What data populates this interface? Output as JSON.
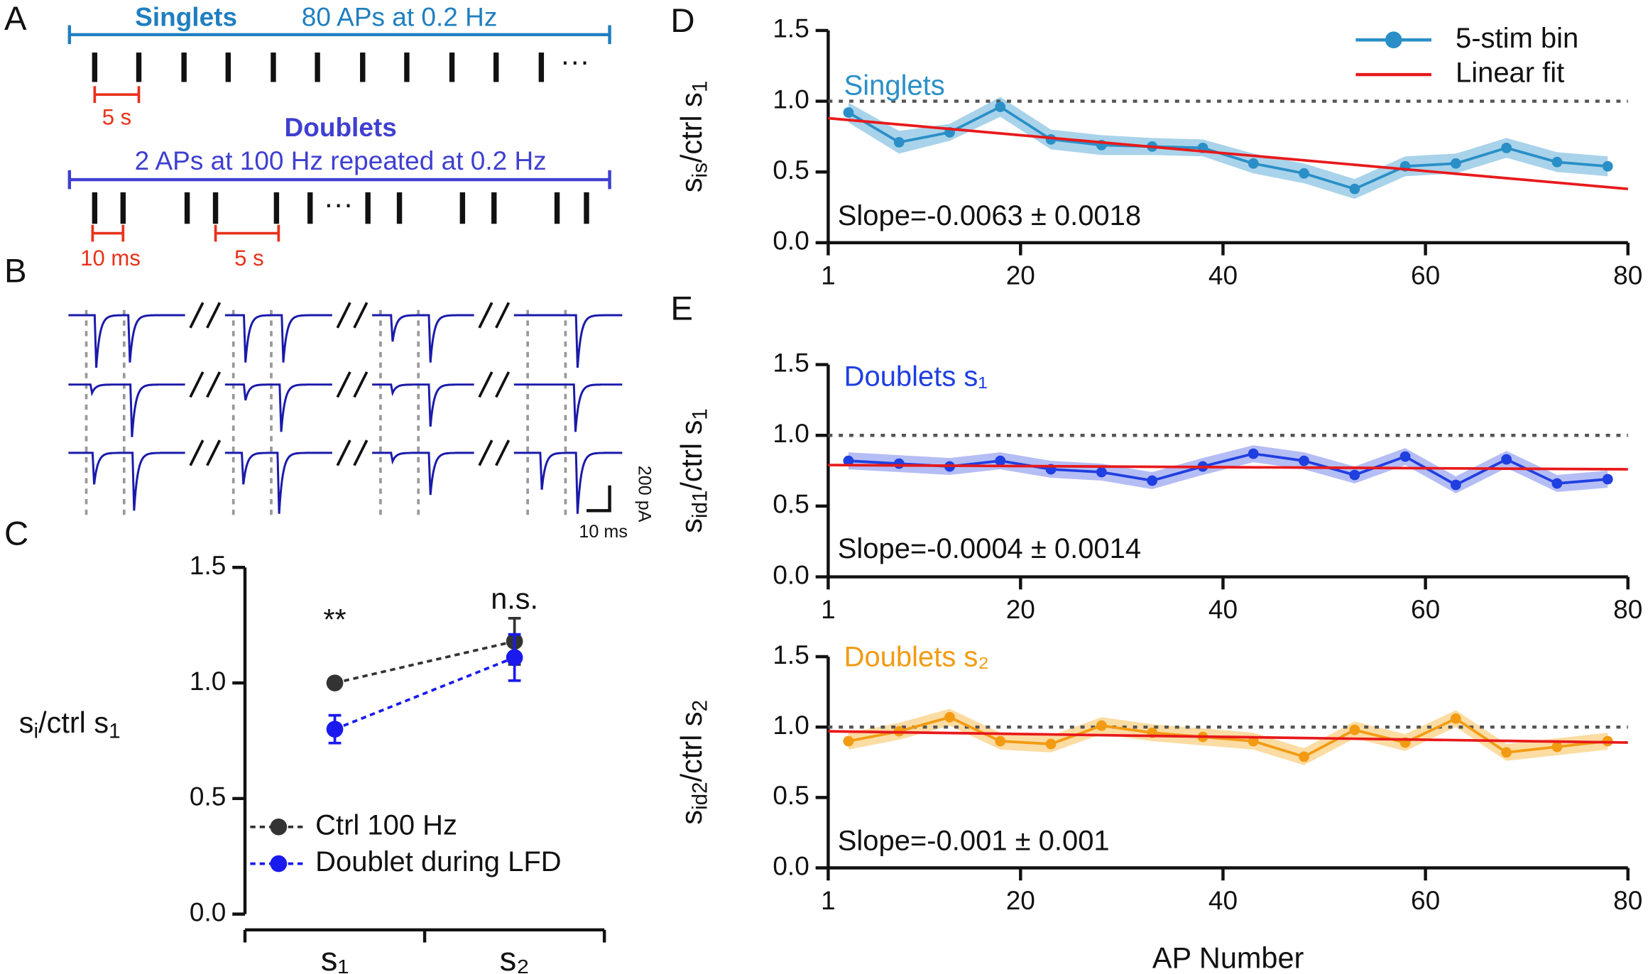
{
  "panel_labels": [
    "A",
    "B",
    "C",
    "D",
    "E"
  ],
  "panel_a": {
    "singlets_title": "Singlets",
    "singlets_text": "80 APs at 0.2 Hz",
    "singlets_scale": "5 s",
    "doublets_title": "Doublets",
    "doublets_text": "2 APs at 100 Hz repeated at 0.2 Hz",
    "doublets_scale_1": "10 ms",
    "doublets_scale_2": "5 s",
    "ellipsis": "···"
  },
  "panel_b": {
    "scale_y": "200 pA",
    "scale_x": "10 ms"
  },
  "chart_data": [
    {
      "type": "line",
      "ylabel": [
        "s",
        "i",
        "/ctrl s",
        "1"
      ],
      "categories": [
        "s₁",
        "s₂"
      ],
      "series": [
        {
          "name": "Ctrl 100 Hz",
          "color": "#333333",
          "values": [
            1.0,
            1.18
          ],
          "errors": [
            null,
            0.1
          ]
        },
        {
          "name": "Doublet during LFD",
          "color": "#1a1aee",
          "values": [
            0.8,
            1.11
          ],
          "errors": [
            0.06,
            0.1
          ]
        }
      ],
      "annotations": [
        "**",
        "n.s."
      ],
      "ylim": [
        0,
        1.5
      ],
      "yticks": [
        {
          "value": 0,
          "label": "0.0"
        },
        0.5,
        {
          "value": 1,
          "label": "1.0"
        },
        1.5
      ],
      "legend": true
    },
    {
      "type": "line",
      "ylabel": [
        "s",
        "is",
        "/ctrl s",
        "1"
      ],
      "label": "Singlets",
      "slope_text": "Slope=-0.0063 ± 0.0018",
      "x": [
        3,
        8,
        13,
        18,
        23,
        28,
        33,
        38,
        43,
        48,
        53,
        58,
        63,
        68,
        73,
        78
      ],
      "series": [
        {
          "name": "5-stim bin",
          "color": "#2a8fc7",
          "band_color": "#a9d3ea",
          "markers": true,
          "values": [
            0.92,
            0.71,
            0.78,
            0.96,
            0.73,
            0.69,
            0.68,
            0.67,
            0.56,
            0.49,
            0.38,
            0.54,
            0.56,
            0.67,
            0.57,
            0.54
          ],
          "lower": [
            0.85,
            0.63,
            0.72,
            0.89,
            0.66,
            0.62,
            0.62,
            0.61,
            0.49,
            0.42,
            0.31,
            0.47,
            0.49,
            0.6,
            0.5,
            0.47
          ],
          "upper": [
            0.99,
            0.79,
            0.84,
            1.03,
            0.8,
            0.76,
            0.74,
            0.73,
            0.63,
            0.56,
            0.45,
            0.61,
            0.63,
            0.74,
            0.64,
            0.61
          ]
        },
        {
          "name": "Linear fit",
          "color": "#e8191b",
          "x": [
            1,
            80
          ],
          "values": [
            0.88,
            0.38
          ]
        }
      ],
      "reference_line": 1,
      "xlim": [
        1,
        80
      ],
      "xticks": [
        1,
        20,
        40,
        60,
        80
      ],
      "ylim": [
        0,
        1.5
      ],
      "yticks": [
        {
          "value": 0,
          "label": "0.0"
        },
        0.5,
        {
          "value": 1,
          "label": "1.0"
        },
        1.5
      ],
      "legend": true
    },
    {
      "type": "line",
      "ylabel": [
        "s",
        "id1",
        "/ctrl s",
        "1"
      ],
      "label": "Doublets s₁",
      "slope_text": "Slope=-0.0004 ± 0.0014",
      "x": [
        3,
        8,
        13,
        18,
        23,
        28,
        33,
        38,
        43,
        48,
        53,
        58,
        63,
        68,
        73,
        78
      ],
      "series": [
        {
          "color": "#1f3fe0",
          "band_color": "#b5bdf5",
          "markers": true,
          "values": [
            0.82,
            0.8,
            0.78,
            0.82,
            0.76,
            0.74,
            0.68,
            0.78,
            0.87,
            0.82,
            0.72,
            0.85,
            0.65,
            0.83,
            0.66,
            0.69
          ],
          "lower": [
            0.76,
            0.74,
            0.72,
            0.76,
            0.7,
            0.68,
            0.62,
            0.72,
            0.81,
            0.76,
            0.66,
            0.79,
            0.59,
            0.77,
            0.6,
            0.63
          ],
          "upper": [
            0.88,
            0.86,
            0.84,
            0.88,
            0.82,
            0.8,
            0.74,
            0.84,
            0.93,
            0.88,
            0.78,
            0.91,
            0.71,
            0.89,
            0.72,
            0.75
          ]
        },
        {
          "color": "#e8191b",
          "x": [
            1,
            80
          ],
          "values": [
            0.79,
            0.76
          ]
        }
      ],
      "reference_line": 1,
      "xlim": [
        1,
        80
      ],
      "xticks": [
        1,
        20,
        40,
        60,
        80
      ],
      "ylim": [
        0,
        1.5
      ],
      "yticks": [
        {
          "value": 0,
          "label": "0.0"
        },
        0.5,
        {
          "value": 1,
          "label": "1.0"
        },
        1.5
      ]
    },
    {
      "type": "line",
      "ylabel": [
        "s",
        "id2",
        "/ctrl s",
        "2"
      ],
      "label": "Doublets s₂",
      "slope_text": "Slope=-0.001 ± 0.001",
      "xlabel": "AP Number",
      "x": [
        3,
        8,
        13,
        18,
        23,
        28,
        33,
        38,
        43,
        48,
        53,
        58,
        63,
        68,
        73,
        78
      ],
      "series": [
        {
          "color": "#f29b12",
          "band_color": "#fbdca3",
          "markers": true,
          "values": [
            0.9,
            0.97,
            1.07,
            0.9,
            0.88,
            1.01,
            0.96,
            0.93,
            0.9,
            0.79,
            0.98,
            0.89,
            1.06,
            0.82,
            0.86,
            0.9
          ],
          "lower": [
            0.84,
            0.91,
            1.01,
            0.84,
            0.82,
            0.95,
            0.9,
            0.87,
            0.84,
            0.73,
            0.92,
            0.83,
            1.0,
            0.76,
            0.8,
            0.84
          ],
          "upper": [
            0.96,
            1.03,
            1.13,
            0.96,
            0.94,
            1.07,
            1.02,
            0.99,
            0.96,
            0.85,
            1.04,
            0.95,
            1.12,
            0.88,
            0.92,
            0.96
          ]
        },
        {
          "color": "#e8191b",
          "x": [
            1,
            80
          ],
          "values": [
            0.97,
            0.89
          ]
        }
      ],
      "reference_line": 1,
      "xlim": [
        1,
        80
      ],
      "xticks": [
        1,
        20,
        40,
        60,
        80
      ],
      "ylim": [
        0,
        1.5
      ],
      "yticks": [
        {
          "value": 0,
          "label": "0.0"
        },
        0.5,
        {
          "value": 1,
          "label": "1.0"
        },
        1.5
      ]
    }
  ]
}
